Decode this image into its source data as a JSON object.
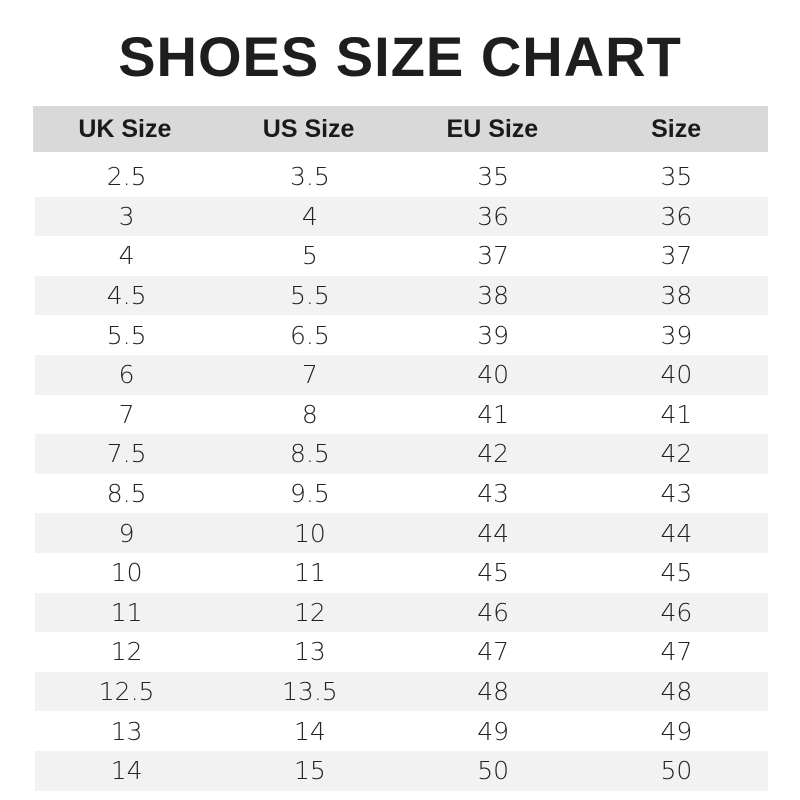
{
  "title": "SHOES SIZE CHART",
  "headers": [
    "UK Size",
    "US Size",
    "EU Size",
    "Size"
  ],
  "rows": [
    [
      "2.5",
      "3.5",
      "35",
      "35"
    ],
    [
      "3",
      "4",
      "36",
      "36"
    ],
    [
      "4",
      "5",
      "37",
      "37"
    ],
    [
      "4.5",
      "5.5",
      "38",
      "38"
    ],
    [
      "5.5",
      "6.5",
      "39",
      "39"
    ],
    [
      "6",
      "7",
      "40",
      "40"
    ],
    [
      "7",
      "8",
      "41",
      "41"
    ],
    [
      "7.5",
      "8.5",
      "42",
      "42"
    ],
    [
      "8.5",
      "9.5",
      "43",
      "43"
    ],
    [
      "9",
      "10",
      "44",
      "44"
    ],
    [
      "10",
      "11",
      "45",
      "45"
    ],
    [
      "11",
      "12",
      "46",
      "46"
    ],
    [
      "12",
      "13",
      "47",
      "47"
    ],
    [
      "12.5",
      "13.5",
      "48",
      "48"
    ],
    [
      "13",
      "14",
      "49",
      "49"
    ],
    [
      "14",
      "15",
      "50",
      "50"
    ]
  ],
  "colors": {
    "header_bg": "#d9d9d9",
    "stripe_bg": "#f2f2f2",
    "text": "#1a1a1a"
  }
}
